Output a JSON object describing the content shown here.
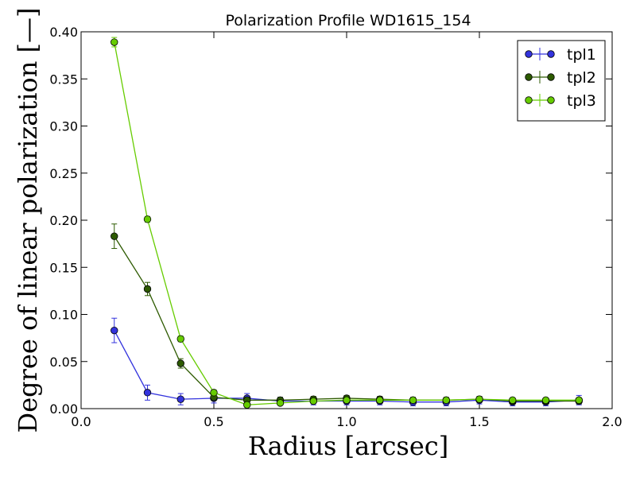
{
  "chart_data": {
    "type": "line",
    "title": "Polarization Profile WD1615_154",
    "xlabel": "Radius [arcsec]",
    "ylabel": "Degree of linear polarization [—]",
    "xlim": [
      0.0,
      2.0
    ],
    "ylim": [
      0.0,
      0.4
    ],
    "xticks": [
      0.0,
      0.5,
      1.0,
      1.5,
      2.0
    ],
    "xtick_labels": [
      "0.0",
      "0.5",
      "1.0",
      "1.5",
      "2.0"
    ],
    "yticks": [
      0.0,
      0.05,
      0.1,
      0.15,
      0.2,
      0.25,
      0.3,
      0.35,
      0.4
    ],
    "ytick_labels": [
      "0.00",
      "0.05",
      "0.10",
      "0.15",
      "0.20",
      "0.25",
      "0.30",
      "0.35",
      "0.40"
    ],
    "grid": false,
    "legend_position": "top-right",
    "x": [
      0.125,
      0.25,
      0.375,
      0.5,
      0.625,
      0.75,
      0.875,
      1.0,
      1.125,
      1.25,
      1.375,
      1.5,
      1.625,
      1.75,
      1.875
    ],
    "series": [
      {
        "name": "tpl1",
        "color": "#3333dd",
        "values": [
          0.083,
          0.017,
          0.01,
          0.011,
          0.011,
          0.008,
          0.008,
          0.008,
          0.008,
          0.007,
          0.007,
          0.009,
          0.007,
          0.007,
          0.009
        ],
        "errors": [
          0.013,
          0.008,
          0.006,
          0.005,
          0.005,
          0.004,
          0.004,
          0.004,
          0.004,
          0.004,
          0.004,
          0.004,
          0.004,
          0.004,
          0.005
        ]
      },
      {
        "name": "tpl2",
        "color": "#2d5a00",
        "values": [
          0.183,
          0.127,
          0.048,
          0.012,
          0.009,
          0.009,
          0.01,
          0.011,
          0.01,
          0.009,
          0.009,
          0.01,
          0.008,
          0.008,
          0.008
        ],
        "errors": [
          0.013,
          0.007,
          0.005,
          0.003,
          0.003,
          0.003,
          0.003,
          0.003,
          0.003,
          0.003,
          0.003,
          0.003,
          0.003,
          0.003,
          0.003
        ]
      },
      {
        "name": "tpl3",
        "color": "#66cc00",
        "values": [
          0.389,
          0.201,
          0.074,
          0.017,
          0.004,
          0.006,
          0.008,
          0.009,
          0.009,
          0.009,
          0.009,
          0.01,
          0.009,
          0.009,
          0.009
        ],
        "errors": [
          0.005,
          0.003,
          0.003,
          0.003,
          0.002,
          0.002,
          0.002,
          0.002,
          0.002,
          0.002,
          0.002,
          0.002,
          0.002,
          0.002,
          0.002
        ]
      }
    ]
  }
}
